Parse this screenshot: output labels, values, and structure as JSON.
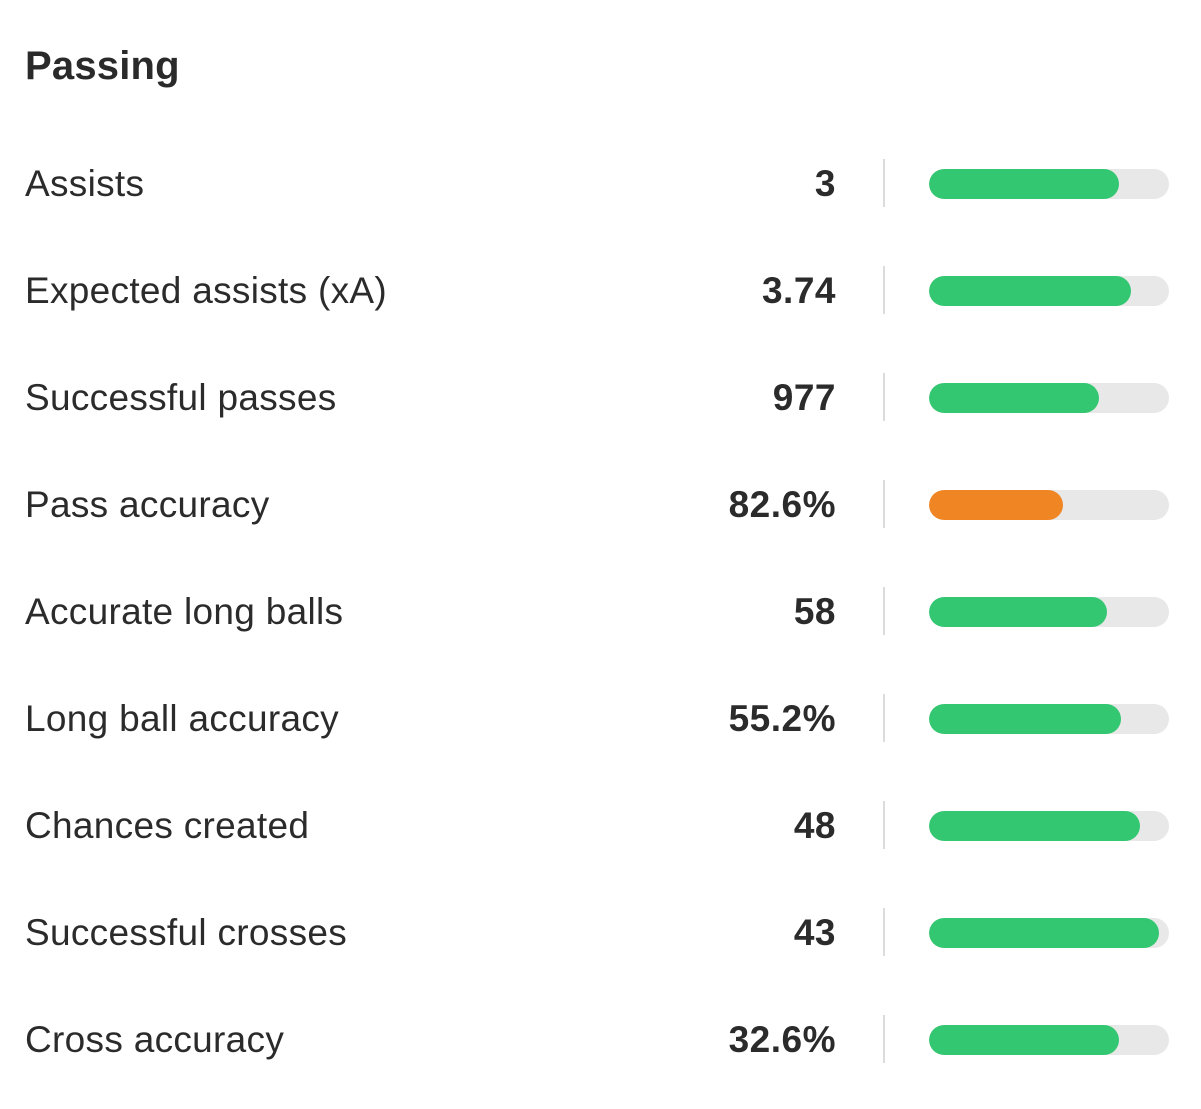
{
  "section": {
    "title": "Passing"
  },
  "colors": {
    "track": "#e8e8e8",
    "good": "#33c771",
    "average": "#f08524"
  },
  "stats": [
    {
      "label": "Assists",
      "value": "3",
      "fill": 0.79,
      "color": "#33c771"
    },
    {
      "label": "Expected assists (xA)",
      "value": "3.74",
      "fill": 0.84,
      "color": "#33c771"
    },
    {
      "label": "Successful passes",
      "value": "977",
      "fill": 0.71,
      "color": "#33c771"
    },
    {
      "label": "Pass accuracy",
      "value": "82.6%",
      "fill": 0.56,
      "color": "#f08524"
    },
    {
      "label": "Accurate long balls",
      "value": "58",
      "fill": 0.74,
      "color": "#33c771"
    },
    {
      "label": "Long ball accuracy",
      "value": "55.2%",
      "fill": 0.8,
      "color": "#33c771"
    },
    {
      "label": "Chances created",
      "value": "48",
      "fill": 0.88,
      "color": "#33c771"
    },
    {
      "label": "Successful crosses",
      "value": "43",
      "fill": 0.96,
      "color": "#33c771"
    },
    {
      "label": "Cross accuracy",
      "value": "32.6%",
      "fill": 0.79,
      "color": "#33c771"
    }
  ]
}
